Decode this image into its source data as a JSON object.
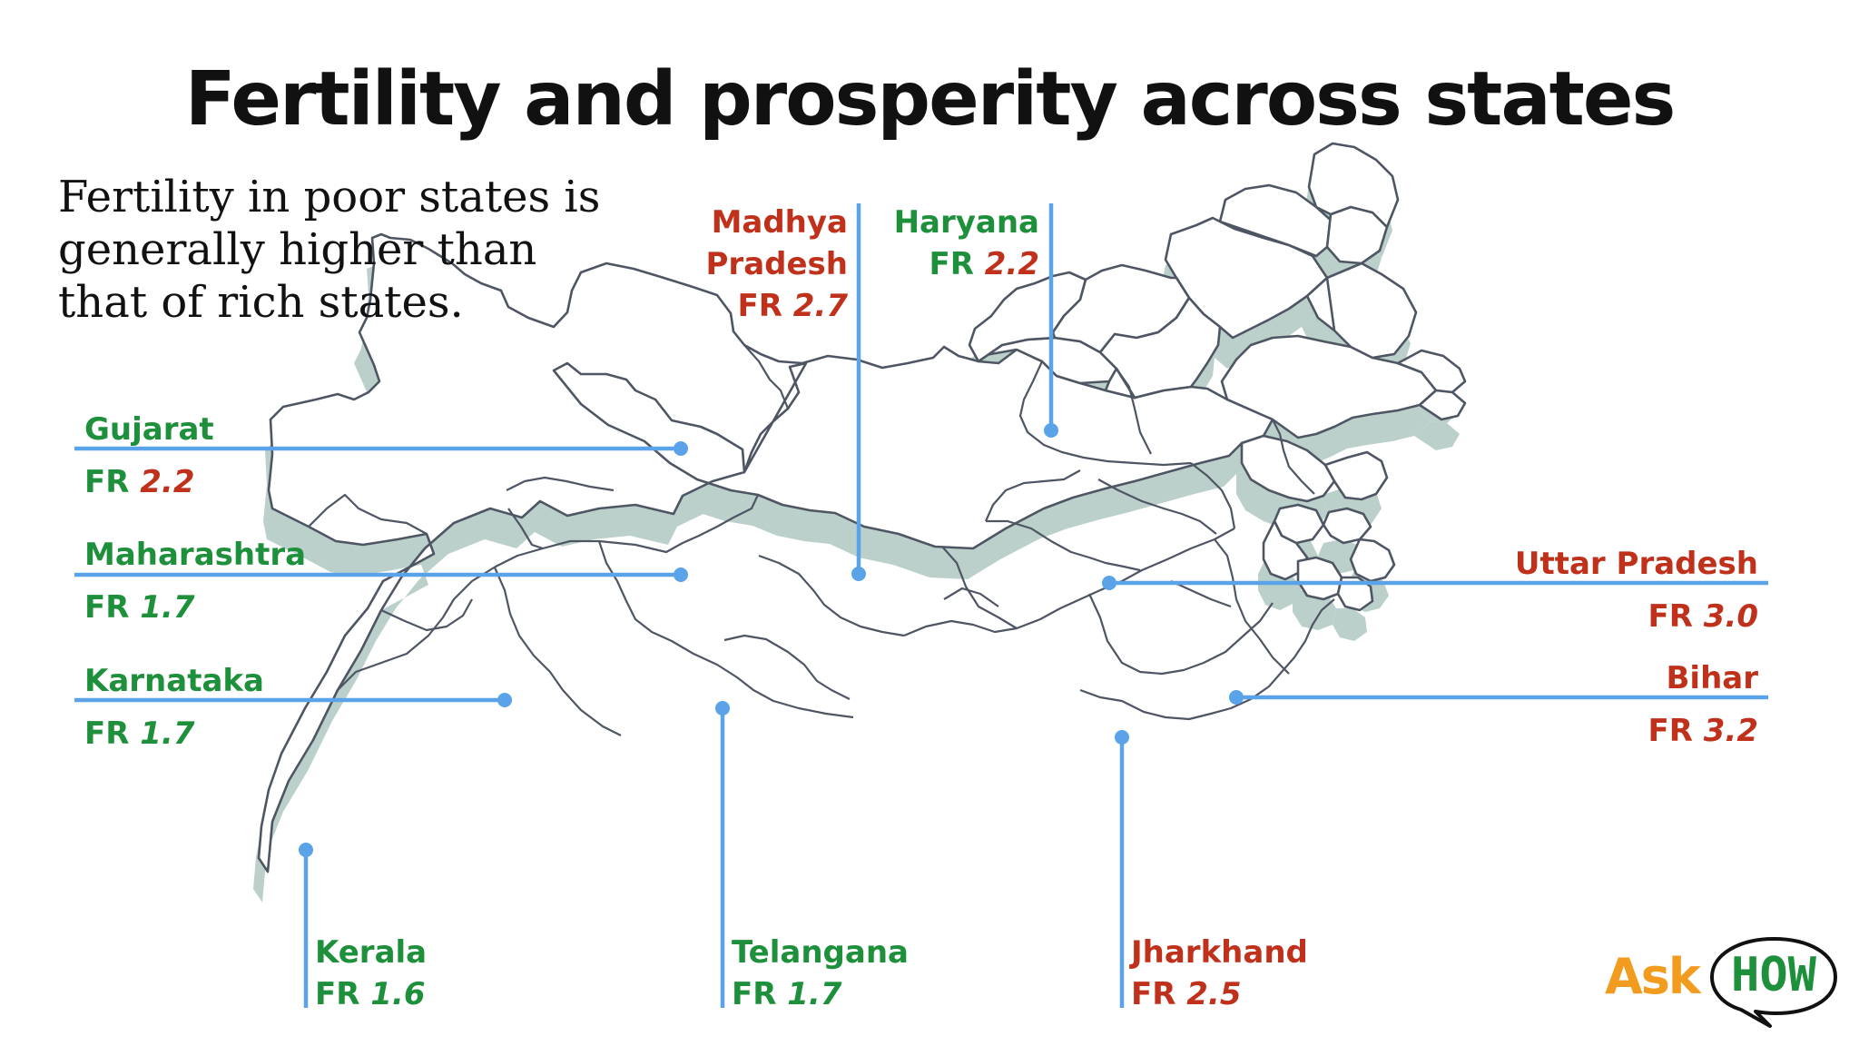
{
  "title": "Fertility  and prosperity across states",
  "subtitle": "Fertility in poor states is generally higher than that of rich states.",
  "colors": {
    "rich": "#1e8f3b",
    "poor": "#c0311c",
    "leader_line": "#5aa3e8",
    "map_outline": "#4e5563",
    "map_shadow": "#bcd0cb",
    "logo_ask": "#f29c1f",
    "logo_how": "#1e8f3b"
  },
  "states": [
    {
      "id": "madhya-pradesh",
      "name": "Madhya Pradesh",
      "name_lines": [
        "Madhya",
        "Pradesh"
      ],
      "fr_prefix": "FR ",
      "fr": "2.7",
      "name_color": "poor",
      "value_color": "poor"
    },
    {
      "id": "haryana",
      "name": "Haryana",
      "name_lines": [
        "Haryana"
      ],
      "fr_prefix": "FR ",
      "fr": "2.2",
      "name_color": "rich",
      "value_color": "poor"
    },
    {
      "id": "gujarat",
      "name": "Gujarat",
      "name_lines": [
        "Gujarat"
      ],
      "fr_prefix": "FR ",
      "fr": "2.2",
      "name_color": "rich",
      "value_color": "poor"
    },
    {
      "id": "maharashtra",
      "name": "Maharashtra",
      "name_lines": [
        "Maharashtra"
      ],
      "fr_prefix": "FR ",
      "fr": "1.7",
      "name_color": "rich",
      "value_color": "rich"
    },
    {
      "id": "karnataka",
      "name": "Karnataka",
      "name_lines": [
        "Karnataka"
      ],
      "fr_prefix": "FR ",
      "fr": "1.7",
      "name_color": "rich",
      "value_color": "rich"
    },
    {
      "id": "uttar-pradesh",
      "name": "Uttar Pradesh",
      "name_lines": [
        "Uttar Pradesh"
      ],
      "fr_prefix": "FR ",
      "fr": "3.0",
      "name_color": "poor",
      "value_color": "poor"
    },
    {
      "id": "bihar",
      "name": "Bihar",
      "name_lines": [
        "Bihar"
      ],
      "fr_prefix": "FR ",
      "fr": "3.2",
      "name_color": "poor",
      "value_color": "poor"
    },
    {
      "id": "kerala",
      "name": "Kerala",
      "name_lines": [
        "Kerala"
      ],
      "fr_prefix": "FR ",
      "fr": "1.6",
      "name_color": "rich",
      "value_color": "rich"
    },
    {
      "id": "telangana",
      "name": "Telangana",
      "name_lines": [
        "Telangana"
      ],
      "fr_prefix": "FR ",
      "fr": "1.7",
      "name_color": "rich",
      "value_color": "rich"
    },
    {
      "id": "jharkhand",
      "name": "Jharkhand",
      "name_lines": [
        "Jharkhand"
      ],
      "fr_prefix": "FR ",
      "fr": "2.5",
      "name_color": "poor",
      "value_color": "poor"
    }
  ],
  "logo": {
    "ask": "Ask",
    "how": "HOW"
  }
}
